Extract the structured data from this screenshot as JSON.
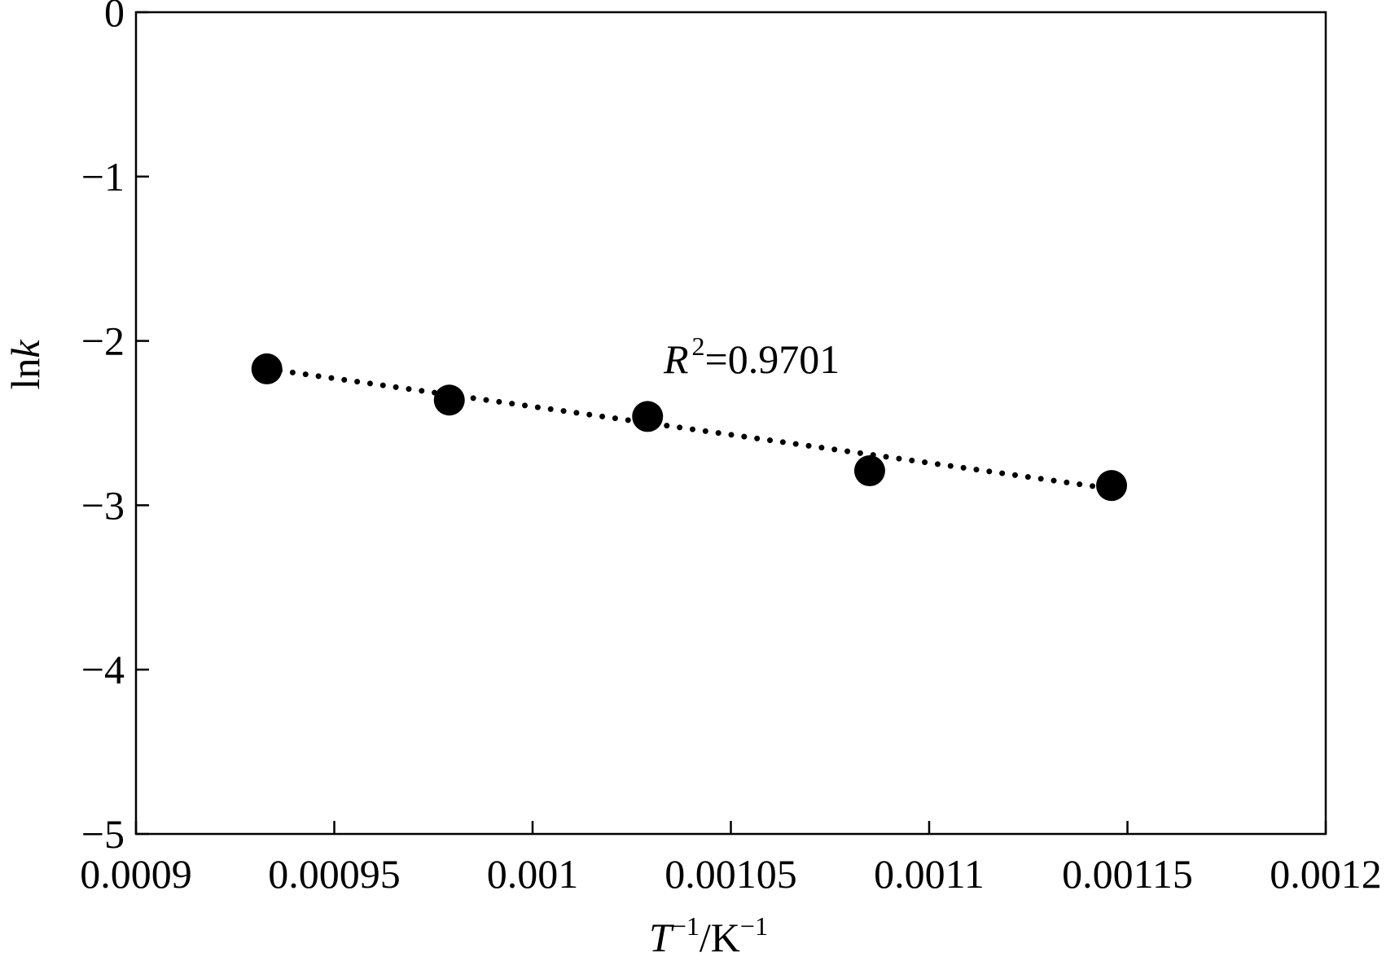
{
  "chart_data": {
    "type": "scatter",
    "title": "",
    "xlabel": {
      "base": "T",
      "base_exponent": "−1",
      "separator": "/",
      "unit": "K",
      "unit_exponent": "−1"
    },
    "ylabel": {
      "prefix": "ln",
      "variable": "k"
    },
    "xlim": [
      0.0009,
      0.0012
    ],
    "ylim": [
      -5,
      0
    ],
    "x_ticks": [
      0.0009,
      0.00095,
      0.001,
      0.00105,
      0.0011,
      0.00115,
      0.0012
    ],
    "x_tick_labels": [
      "0.0009",
      "0.00095",
      "0.001",
      "0.00105",
      "0.0011",
      "0.00115",
      "0.0012"
    ],
    "y_ticks": [
      0,
      -1,
      -2,
      -3,
      -4,
      -5
    ],
    "y_tick_labels": [
      "0",
      "−1",
      "−2",
      "−3",
      "−4",
      "−5"
    ],
    "grid": false,
    "series": [
      {
        "marker": "filled-circle",
        "color": "#000000",
        "x": [
          0.000933,
          0.000979,
          0.001029,
          0.001085,
          0.001146
        ],
        "y": [
          -2.17,
          -2.36,
          -2.46,
          -2.79,
          -2.88
        ]
      }
    ],
    "trendline": {
      "style": "dotted",
      "color": "#000000",
      "x": [
        0.000933,
        0.001146
      ],
      "y": [
        -2.17,
        -2.9
      ]
    },
    "annotations": [
      {
        "label_italic": "R",
        "label_superscript": "2",
        "label_rest": "=0.9701"
      }
    ]
  }
}
